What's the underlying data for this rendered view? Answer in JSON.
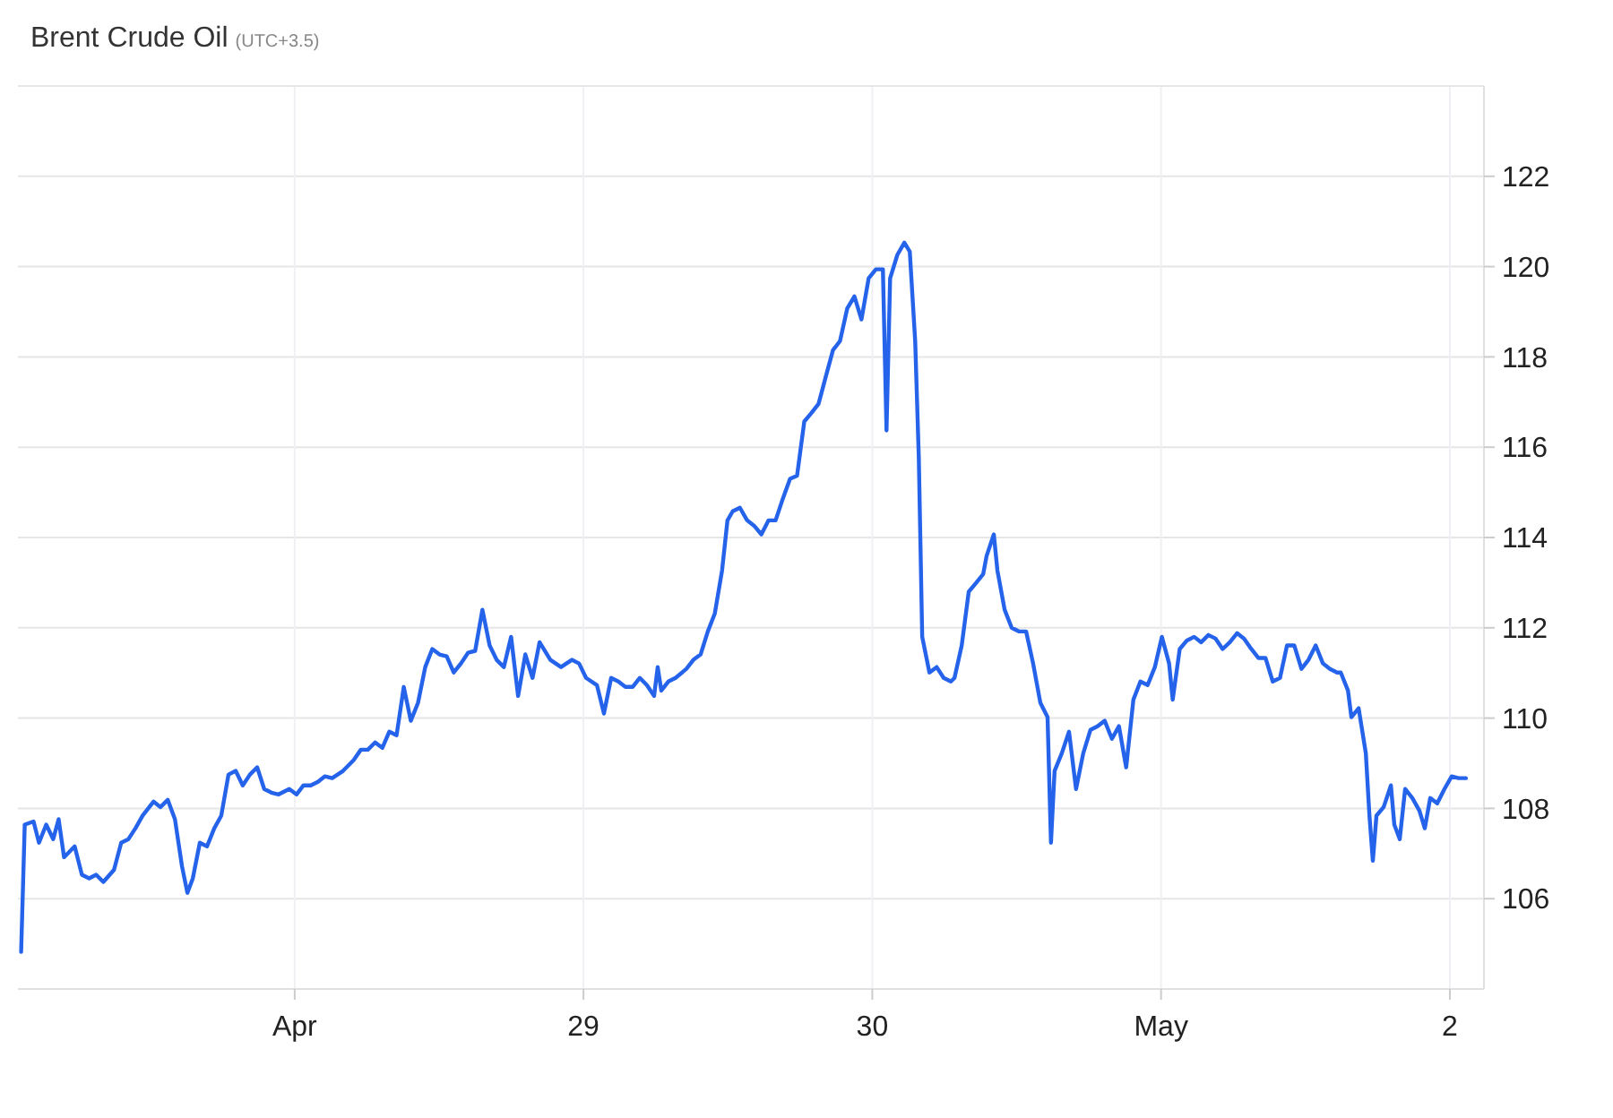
{
  "chart_data": {
    "type": "line",
    "title": "Brent Crude Oil",
    "subtitle": "(UTC+3.5)",
    "x": [
      "--04-27T01:16",
      "--04-27T01:34",
      "--04-27T02:18",
      "--04-27T02:45",
      "--04-27T03:21",
      "--04-27T03:56",
      "--04-27T04:23",
      "--04-27T04:50",
      "--04-27T05:17",
      "--04-27T05:43",
      "--04-27T06:19",
      "--04-27T06:55",
      "--04-27T07:30",
      "--04-27T08:06",
      "--04-27T08:59",
      "--04-27T09:35",
      "--04-27T10:11",
      "--04-27T10:46",
      "--04-27T11:22",
      "--04-27T12:16",
      "--04-27T12:51",
      "--04-27T13:27",
      "--04-27T14:03",
      "--04-27T14:38",
      "--04-27T15:05",
      "--04-27T15:32",
      "--04-27T16:07",
      "--04-27T16:43",
      "--04-27T17:19",
      "--04-27T17:54",
      "--04-27T18:30",
      "--04-27T19:06",
      "--04-27T19:41",
      "--04-27T20:17",
      "--04-27T20:53",
      "--04-27T21:28",
      "--04-27T22:04",
      "--04-27T22:40",
      "--04-27T23:33",
      "--04-28T00:09",
      "--04-28T00:44",
      "--04-28T01:20",
      "--04-28T01:56",
      "--04-28T02:31",
      "--04-28T03:07",
      "--04-28T04:01",
      "--04-28T04:54",
      "--04-28T05:30",
      "--04-28T06:05",
      "--04-28T06:41",
      "--04-28T07:17",
      "--04-28T07:52",
      "--04-28T08:28",
      "--04-28T09:04",
      "--04-28T09:39",
      "--04-28T10:15",
      "--04-28T10:51",
      "--04-28T11:26",
      "--04-28T12:02",
      "--04-28T12:38",
      "--04-28T13:13",
      "--04-28T13:49",
      "--04-28T14:25",
      "--04-28T15:00",
      "--04-28T15:36",
      "--04-28T16:12",
      "--04-28T16:47",
      "--04-28T17:23",
      "--04-28T17:59",
      "--04-28T18:34",
      "--04-28T19:10",
      "--04-28T19:46",
      "--04-28T20:21",
      "--04-28T21:15",
      "--04-28T22:08",
      "--04-28T23:02",
      "--04-28T23:38",
      "--04-29T00:13",
      "--04-29T01:07",
      "--04-29T01:42",
      "--04-29T02:18",
      "--04-29T02:54",
      "--04-29T03:29",
      "--04-29T04:05",
      "--04-29T04:41",
      "--04-29T05:16",
      "--04-29T05:52",
      "--04-29T06:10",
      "--04-29T06:28",
      "--04-29T07:03",
      "--04-29T07:39",
      "--04-29T08:33",
      "--04-29T09:08",
      "--04-29T09:44",
      "--04-29T10:20",
      "--04-29T10:55",
      "--04-29T11:31",
      "--04-29T11:58",
      "--04-29T12:24",
      "--04-29T13:00",
      "--04-29T13:36",
      "--04-29T14:11",
      "--04-29T14:47",
      "--04-29T15:23",
      "--04-29T15:58",
      "--04-29T16:34",
      "--04-29T17:10",
      "--04-29T17:45",
      "--04-29T18:21",
      "--04-29T18:57",
      "--04-29T19:32",
      "--04-29T20:08",
      "--04-29T20:44",
      "--04-29T21:19",
      "--04-29T21:55",
      "--04-29T22:31",
      "--04-29T23:06",
      "--04-29T23:42",
      "--04-30T00:18",
      "--04-30T00:53",
      "--04-30T01:11",
      "--04-30T01:29",
      "--04-30T02:05",
      "--04-30T02:40",
      "--04-30T03:07",
      "--04-30T03:34",
      "--04-30T03:52",
      "--04-30T04:09",
      "--04-30T04:45",
      "--04-30T05:21",
      "--04-30T05:56",
      "--04-30T06:32",
      "--04-30T06:50",
      "--04-30T07:26",
      "--04-30T08:01",
      "--04-30T08:37",
      "--04-30T09:13",
      "--04-30T09:30",
      "--04-30T10:06",
      "--04-30T10:24",
      "--04-30T11:00",
      "--04-30T11:35",
      "--04-30T12:11",
      "--04-30T12:47",
      "--04-30T13:22",
      "--04-30T13:58",
      "--04-30T14:34",
      "--04-30T14:51",
      "--04-30T15:09",
      "--04-30T15:45",
      "--04-30T16:21",
      "--04-30T16:56",
      "--04-30T17:32",
      "--04-30T18:08",
      "--04-30T18:43",
      "--04-30T19:19",
      "--04-30T19:55",
      "--04-30T20:30",
      "--04-30T21:06",
      "--04-30T21:42",
      "--04-30T22:17",
      "--04-30T22:53",
      "--04-30T23:29",
      "--05-01T00:04",
      "--05-01T00:40",
      "--05-01T00:58",
      "--05-01T01:33",
      "--05-01T02:09",
      "--05-01T02:45",
      "--05-01T03:20",
      "--05-01T03:56",
      "--05-01T04:32",
      "--05-01T05:07",
      "--05-01T05:43",
      "--05-01T06:19",
      "--05-01T06:54",
      "--05-01T07:30",
      "--05-01T08:06",
      "--05-01T08:41",
      "--05-01T09:17",
      "--05-01T09:53",
      "--05-01T10:28",
      "--05-01T11:04",
      "--05-01T11:40",
      "--05-01T12:15",
      "--05-01T12:51",
      "--05-01T13:27",
      "--05-01T14:02",
      "--05-01T14:38",
      "--05-01T14:56",
      "--05-01T15:32",
      "--05-01T15:49",
      "--05-01T16:25",
      "--05-01T17:01",
      "--05-01T17:19",
      "--05-01T17:36",
      "--05-01T17:54",
      "--05-01T18:30",
      "--05-01T19:06",
      "--05-01T19:23",
      "--05-01T19:50",
      "--05-01T20:17",
      "--05-01T20:53",
      "--05-01T21:28",
      "--05-01T21:55",
      "--05-01T22:22",
      "--05-01T22:57",
      "--05-01T23:33",
      "--05-02T00:09",
      "--05-02T00:44",
      "--05-02T01:20"
    ],
    "series": [
      {
        "color": "#2563eb",
        "values": [
          104.82,
          107.64,
          107.71,
          107.24,
          107.64,
          107.32,
          107.76,
          106.92,
          107.04,
          107.16,
          106.53,
          106.45,
          106.53,
          106.37,
          106.64,
          107.24,
          107.32,
          107.56,
          107.84,
          108.15,
          108.03,
          108.19,
          107.76,
          106.72,
          106.13,
          106.45,
          107.24,
          107.16,
          107.56,
          107.84,
          108.75,
          108.83,
          108.51,
          108.75,
          108.91,
          108.43,
          108.35,
          108.31,
          108.43,
          108.31,
          108.51,
          108.51,
          108.59,
          108.71,
          108.67,
          108.83,
          109.07,
          109.3,
          109.3,
          109.46,
          109.34,
          109.7,
          109.62,
          110.69,
          109.94,
          110.34,
          111.13,
          111.53,
          111.41,
          111.37,
          111.01,
          111.21,
          111.45,
          111.49,
          112.4,
          111.61,
          111.29,
          111.13,
          111.8,
          110.49,
          111.41,
          110.89,
          111.68,
          111.29,
          111.13,
          111.29,
          111.21,
          110.89,
          110.73,
          110.1,
          110.89,
          110.81,
          110.69,
          110.69,
          110.89,
          110.73,
          110.49,
          111.13,
          110.61,
          110.81,
          110.89,
          111.09,
          111.29,
          111.41,
          111.92,
          112.32,
          113.27,
          114.38,
          114.58,
          114.66,
          114.38,
          114.26,
          114.07,
          114.38,
          114.38,
          114.86,
          115.3,
          115.37,
          116.57,
          116.76,
          116.96,
          117.56,
          118.15,
          118.35,
          119.07,
          119.34,
          118.83,
          119.74,
          119.94,
          119.94,
          116.37,
          119.74,
          120.26,
          120.53,
          120.33,
          118.35,
          115.77,
          111.8,
          111.01,
          111.13,
          110.89,
          110.81,
          110.89,
          111.61,
          112.8,
          112.99,
          113.19,
          113.59,
          114.07,
          113.27,
          112.4,
          112,
          111.92,
          111.92,
          111.21,
          110.34,
          110.02,
          107.24,
          108.83,
          109.22,
          109.7,
          108.43,
          109.22,
          109.74,
          109.82,
          109.94,
          109.54,
          109.82,
          108.91,
          110.41,
          110.81,
          110.73,
          111.13,
          111.8,
          111.21,
          110.41,
          111.53,
          111.72,
          111.8,
          111.68,
          111.84,
          111.76,
          111.53,
          111.68,
          111.88,
          111.76,
          111.53,
          111.33,
          111.33,
          110.81,
          110.89,
          111.61,
          111.61,
          111.09,
          111.29,
          111.61,
          111.21,
          111.09,
          111.01,
          111.01,
          110.61,
          110.02,
          110.22,
          109.22,
          107.84,
          106.84,
          107.84,
          108.03,
          108.51,
          107.64,
          107.32,
          108.43,
          108.23,
          107.95,
          107.56,
          108.23,
          108.11,
          108.43,
          108.71,
          108.67,
          108.67
        ]
      }
    ],
    "xlim": [
      "--04-27T01:00",
      "--05-02T02:50"
    ],
    "ylim": [
      104,
      124
    ],
    "xticks": [
      {
        "value": "--04-28",
        "label": "Apr"
      },
      {
        "value": "--04-29",
        "label": "29"
      },
      {
        "value": "--04-30",
        "label": "30"
      },
      {
        "value": "--05-01",
        "label": "May"
      },
      {
        "value": "--05-02",
        "label": "2"
      }
    ],
    "yticks": [
      106,
      108,
      110,
      112,
      114,
      116,
      118,
      120,
      122
    ],
    "grid": true,
    "marker": "none",
    "line_style": "solid"
  }
}
